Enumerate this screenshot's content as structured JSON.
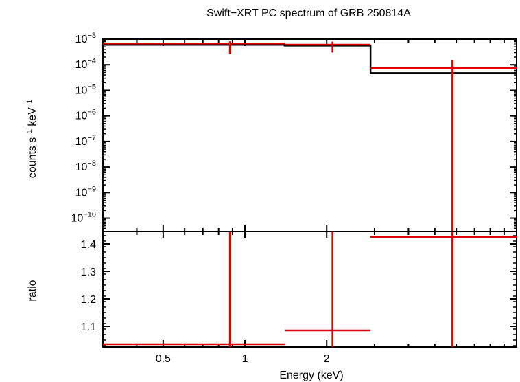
{
  "chart_data": {
    "type": "line",
    "title": "Swift−XRT PC spectrum of GRB 250814A",
    "xlabel": "Energy (keV)",
    "x_scale": "log",
    "xlim": [
      0.3,
      10.0
    ],
    "x_ticks": [
      {
        "value": 0.5,
        "label": "0.5"
      },
      {
        "value": 1,
        "label": "1"
      },
      {
        "value": 2,
        "label": "2"
      }
    ],
    "top_panel": {
      "ylabel_base": "counts s",
      "ylabel_mid": " keV",
      "ylabel_exp": "−1",
      "y_scale": "log",
      "ylim": [
        3e-11,
        0.001
      ],
      "y_ticks": [
        {
          "value": 0.001,
          "base": "10",
          "exp": "−3"
        },
        {
          "value": 0.0001,
          "base": "10",
          "exp": "−4"
        },
        {
          "value": 1e-05,
          "base": "10",
          "exp": "−5"
        },
        {
          "value": 1e-06,
          "base": "10",
          "exp": "−6"
        },
        {
          "value": 1e-07,
          "base": "10",
          "exp": "−7"
        },
        {
          "value": 1e-08,
          "base": "10",
          "exp": "−8"
        },
        {
          "value": 1e-09,
          "base": "10",
          "exp": "−9"
        },
        {
          "value": 1e-10,
          "base": "10",
          "exp": "−10"
        }
      ],
      "series": [
        {
          "kind": "model",
          "color": "#000000",
          "steps": [
            {
              "x0": 0.3,
              "x1": 1.4,
              "y": 0.0006
            },
            {
              "x0": 1.4,
              "x1": 2.9,
              "y": 0.00056
            },
            {
              "x0": 2.9,
              "x1": 10.0,
              "y": 4.7e-05
            }
          ]
        },
        {
          "kind": "data",
          "color": "#e00000",
          "points": [
            {
              "x0": 0.3,
              "x": 0.88,
              "x1": 1.4,
              "y": 0.00068,
              "ylo": 0.00026,
              "yhi": 0.00082
            },
            {
              "x0": 1.4,
              "x": 2.1,
              "x1": 2.9,
              "y": 0.00061,
              "ylo": 0.0003,
              "yhi": 0.0008
            },
            {
              "x0": 2.9,
              "x": 5.8,
              "x1": 10.0,
              "y": 7.4e-05,
              "ylo": 3e-11,
              "yhi": 0.00015
            }
          ]
        }
      ]
    },
    "bottom_panel": {
      "ylabel": "ratio",
      "y_scale": "linear",
      "ylim": [
        1.025,
        1.445
      ],
      "y_ticks": [
        {
          "value": 1.1,
          "label": "1.1"
        },
        {
          "value": 1.2,
          "label": "1.2"
        },
        {
          "value": 1.3,
          "label": "1.3"
        },
        {
          "value": 1.4,
          "label": "1.4"
        }
      ],
      "series": [
        {
          "kind": "data",
          "color": "#e00000",
          "points": [
            {
              "x0": 0.3,
              "x": 0.88,
              "x1": 1.4,
              "y": 1.035,
              "ylo": 1.025,
              "yhi": 1.445
            },
            {
              "x0": 1.4,
              "x": 2.1,
              "x1": 2.9,
              "y": 1.085,
              "ylo": 1.025,
              "yhi": 1.445
            },
            {
              "x0": 2.9,
              "x": 5.8,
              "x1": 10.0,
              "y": 1.425,
              "ylo": 1.025,
              "yhi": 1.445
            }
          ]
        }
      ]
    }
  }
}
